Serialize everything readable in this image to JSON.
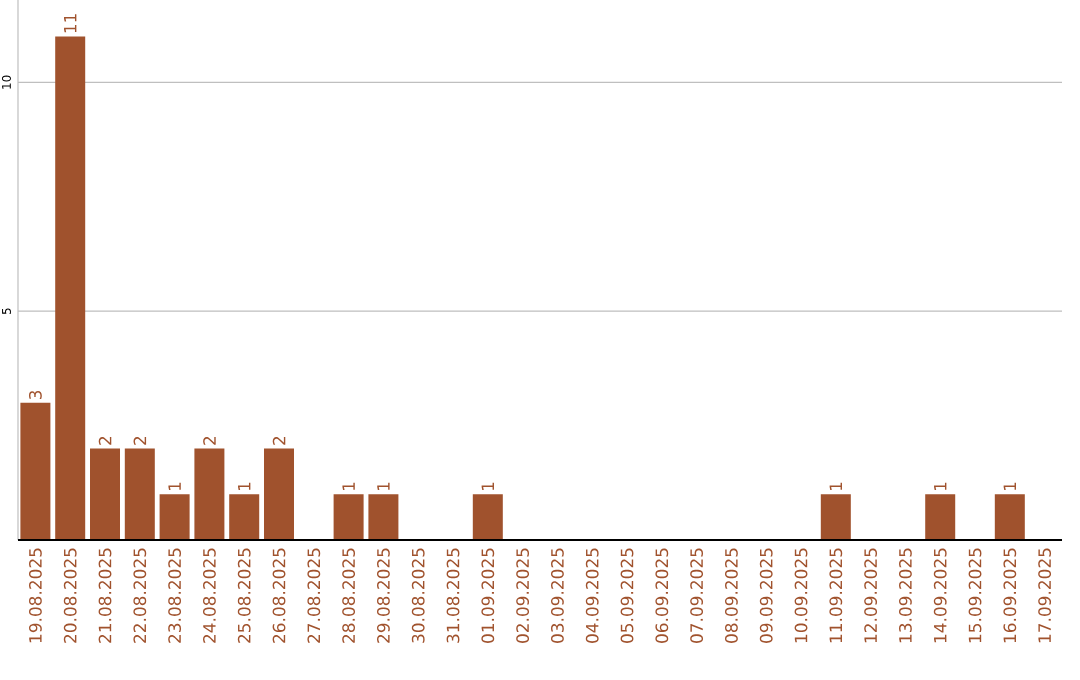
{
  "chart_data": {
    "type": "bar",
    "categories": [
      "19.08.2025",
      "20.08.2025",
      "21.08.2025",
      "22.08.2025",
      "23.08.2025",
      "24.08.2025",
      "25.08.2025",
      "26.08.2025",
      "27.08.2025",
      "28.08.2025",
      "29.08.2025",
      "30.08.2025",
      "31.08.2025",
      "01.09.2025",
      "02.09.2025",
      "03.09.2025",
      "04.09.2025",
      "05.09.2025",
      "06.09.2025",
      "07.09.2025",
      "08.09.2025",
      "09.09.2025",
      "10.09.2025",
      "11.09.2025",
      "12.09.2025",
      "13.09.2025",
      "14.09.2025",
      "15.09.2025",
      "16.09.2025",
      "17.09.2025"
    ],
    "values": [
      3,
      11,
      2,
      2,
      1,
      2,
      1,
      2,
      0,
      1,
      1,
      0,
      0,
      1,
      0,
      0,
      0,
      0,
      0,
      0,
      0,
      0,
      0,
      1,
      0,
      0,
      1,
      0,
      1,
      0
    ],
    "value_labels": [
      "3",
      "11",
      "2",
      "2",
      "1",
      "2",
      "1",
      "2",
      null,
      "1",
      "1",
      null,
      null,
      "1",
      null,
      null,
      null,
      null,
      null,
      null,
      null,
      null,
      null,
      "1",
      null,
      null,
      "1",
      null,
      "1",
      null
    ],
    "color": "#a0522d",
    "ylim": [
      0,
      11.8
    ],
    "yticks": [
      5,
      10
    ],
    "grid": "y"
  }
}
